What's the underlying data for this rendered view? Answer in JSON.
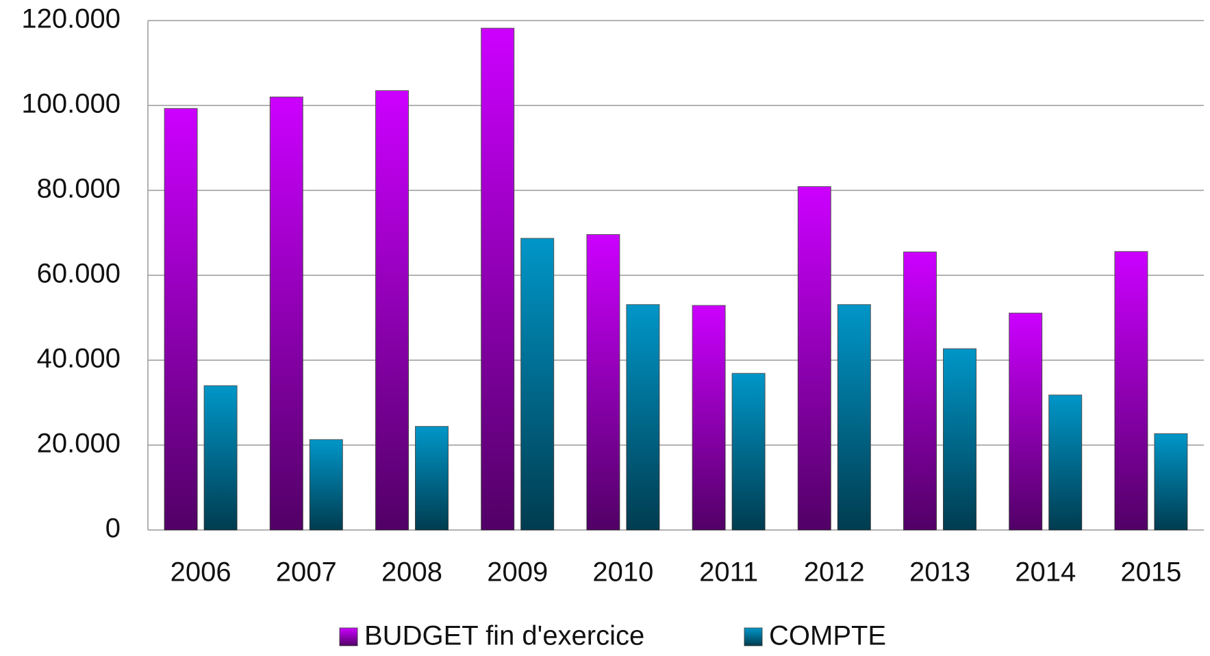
{
  "chart_data": {
    "type": "bar",
    "categories": [
      "2006",
      "2007",
      "2008",
      "2009",
      "2010",
      "2011",
      "2012",
      "2013",
      "2014",
      "2015"
    ],
    "series": [
      {
        "name": "BUDGET fin d'exercice",
        "color": "#cc00ff",
        "values": [
          99300,
          102000,
          103500,
          118200,
          69600,
          52900,
          80900,
          65500,
          51100,
          65600
        ]
      },
      {
        "name": "COMPTE",
        "color": "#0096c8",
        "values": [
          34000,
          21300,
          24400,
          68700,
          53100,
          36900,
          53100,
          42700,
          31800,
          22700
        ]
      }
    ],
    "ylim": [
      0,
      120000
    ],
    "yticks": [
      0,
      {
        "value": 20000,
        "label": "20.000"
      },
      {
        "value": 40000,
        "label": "40.000"
      },
      {
        "value": 60000,
        "label": "60.000"
      },
      {
        "value": 80000,
        "label": "80.000"
      },
      {
        "value": 100000,
        "label": "100.000"
      },
      {
        "value": 120000,
        "label": "120.000"
      }
    ],
    "grid": true,
    "legend": "bottom"
  }
}
